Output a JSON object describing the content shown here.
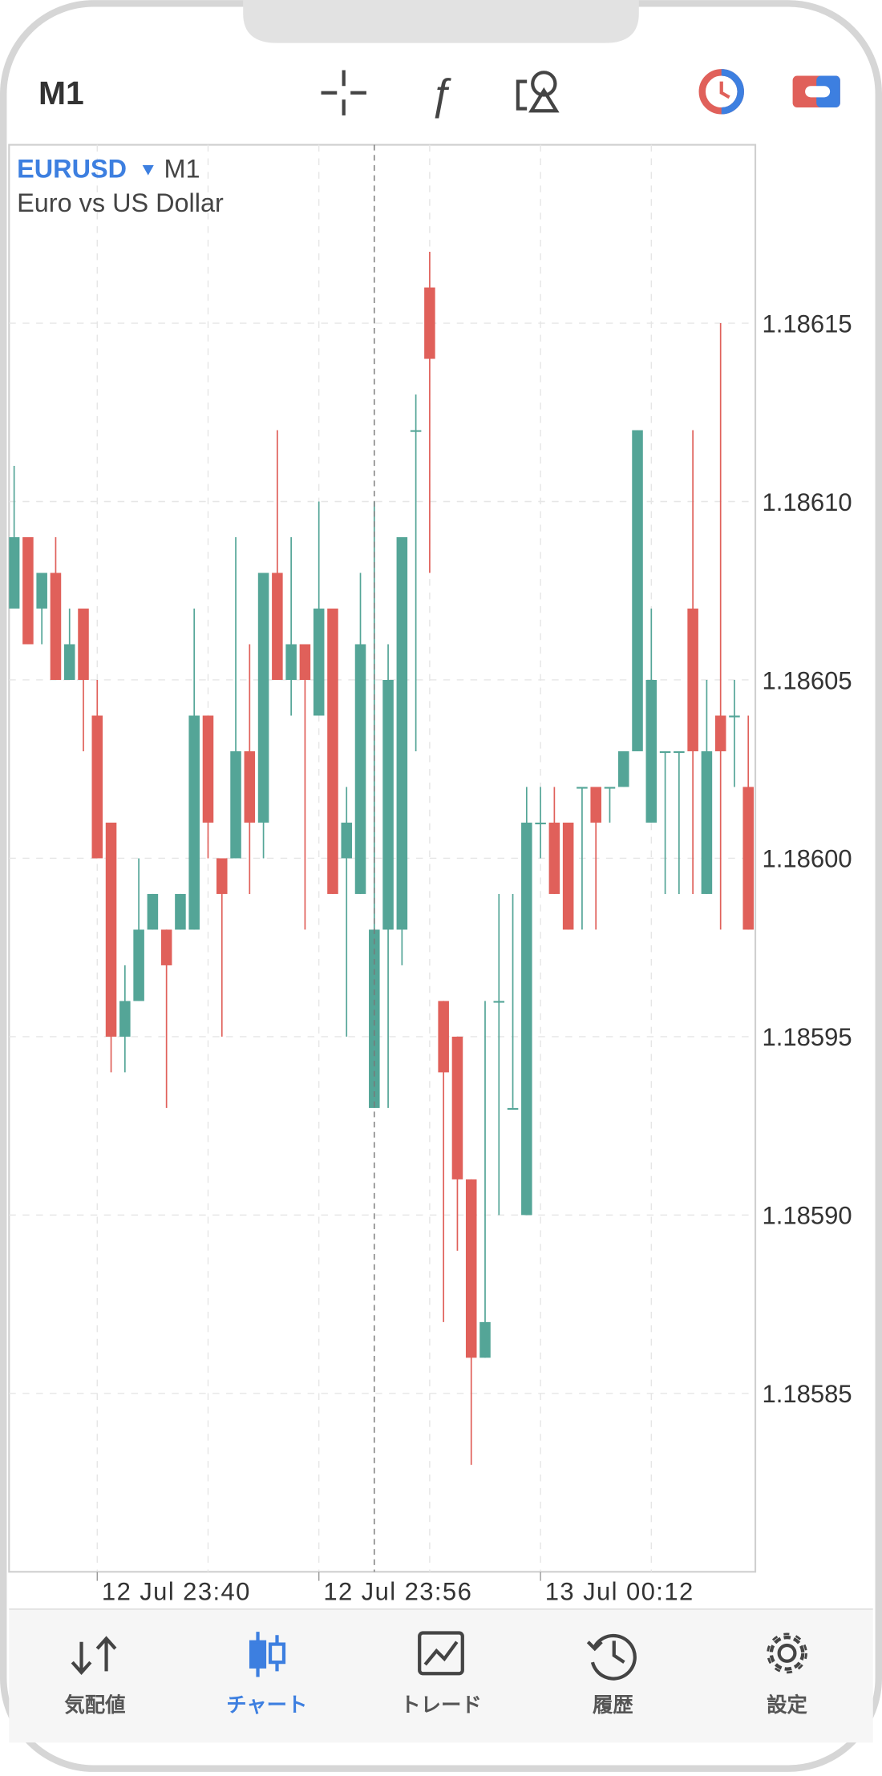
{
  "header": {
    "timeframe": "M1"
  },
  "chart_data": {
    "type": "candlestick",
    "symbol": "EURUSD",
    "timeframe": "M1",
    "description": "Euro vs US Dollar",
    "categories": [
      null,
      null,
      null,
      null,
      null,
      null,
      "12 Jul 23:40",
      null,
      null,
      null,
      null,
      null,
      null,
      null,
      null,
      null,
      null,
      null,
      null,
      null,
      null,
      null,
      "12 Jul 23:56",
      null,
      null,
      null,
      null,
      null,
      null,
      null,
      null,
      null,
      null,
      null,
      null,
      null,
      null,
      null,
      "13 Jul 00:12",
      null,
      null,
      null,
      null,
      null,
      null,
      null,
      null,
      null,
      null,
      null,
      null,
      null,
      null,
      null
    ],
    "open": [
      1.18607,
      1.18609,
      1.18607,
      1.18608,
      1.18605,
      1.18607,
      1.18604,
      1.18601,
      1.18595,
      1.18596,
      1.18598,
      1.18598,
      1.18598,
      1.18598,
      1.18604,
      1.186,
      1.186,
      1.18603,
      1.18601,
      1.18608,
      1.18605,
      1.18606,
      1.18604,
      1.18607,
      1.186,
      1.18599,
      1.18593,
      1.18598,
      1.18598,
      1.18612,
      1.18616,
      1.18596,
      1.18595,
      1.18591,
      1.18586,
      1.18596,
      1.18593,
      1.1859,
      1.18601,
      1.18601,
      1.18601,
      1.18602,
      1.18602,
      1.18602,
      1.18602,
      1.18603,
      1.18601,
      1.18603,
      1.18603,
      1.18607,
      1.18599,
      1.18604,
      1.18604,
      1.18602
    ],
    "high": [
      1.18611,
      1.18609,
      1.18608,
      1.18609,
      1.18607,
      1.18607,
      1.18605,
      1.18601,
      1.18597,
      1.186,
      1.18599,
      1.18598,
      1.18599,
      1.18607,
      1.18604,
      1.186,
      1.18609,
      1.18606,
      1.18608,
      1.18612,
      1.18609,
      1.18606,
      1.1861,
      1.18607,
      1.18602,
      1.18608,
      1.1861,
      1.18606,
      1.18609,
      1.18613,
      1.18617,
      1.18596,
      1.18595,
      1.18591,
      1.18596,
      1.18599,
      1.18599,
      1.18602,
      1.18602,
      1.18602,
      1.18601,
      1.18602,
      1.18602,
      1.18602,
      1.18603,
      1.18612,
      1.18607,
      1.18603,
      1.18603,
      1.18612,
      1.18605,
      1.18615,
      1.18605,
      1.18604
    ],
    "low": [
      1.18607,
      1.18606,
      1.18606,
      1.18605,
      1.18605,
      1.18603,
      1.186,
      1.18594,
      1.18594,
      1.18596,
      1.18598,
      1.18593,
      1.18598,
      1.18598,
      1.186,
      1.18595,
      1.186,
      1.18599,
      1.186,
      1.18605,
      1.18604,
      1.18598,
      1.18604,
      1.18599,
      1.18595,
      1.18599,
      1.18593,
      1.18593,
      1.18597,
      1.18603,
      1.18608,
      1.18587,
      1.18589,
      1.18583,
      1.18586,
      1.1859,
      1.18593,
      1.1859,
      1.186,
      1.18599,
      1.18598,
      1.18598,
      1.18598,
      1.18601,
      1.18602,
      1.18603,
      1.18601,
      1.18599,
      1.18599,
      1.18599,
      1.18599,
      1.18598,
      1.18602,
      1.18598
    ],
    "close": [
      1.18609,
      1.18606,
      1.18608,
      1.18605,
      1.18606,
      1.18605,
      1.186,
      1.18595,
      1.18596,
      1.18598,
      1.18599,
      1.18597,
      1.18599,
      1.18604,
      1.18601,
      1.18599,
      1.18603,
      1.18601,
      1.18608,
      1.18605,
      1.18606,
      1.18605,
      1.18607,
      1.18599,
      1.18601,
      1.18606,
      1.18598,
      1.18605,
      1.18609,
      1.18612,
      1.18614,
      1.18594,
      1.18591,
      1.18586,
      1.18587,
      1.18596,
      1.18593,
      1.18601,
      1.18601,
      1.18599,
      1.18598,
      1.18602,
      1.18601,
      1.18602,
      1.18603,
      1.18612,
      1.18605,
      1.18603,
      1.18603,
      1.18603,
      1.18603,
      1.18603,
      1.18604,
      1.18598
    ],
    "up_color": "#54a597",
    "down_color": "#e0605a",
    "ylim": [
      1.1858,
      1.1862
    ],
    "yticks": [
      1.18585,
      {
        "value": 1.1859,
        "label": "1.18590"
      },
      1.18595,
      {
        "value": 1.186,
        "label": "1.18600"
      },
      1.18605,
      {
        "value": 1.1861,
        "label": "1.18610"
      },
      1.18615
    ],
    "grid": true
  },
  "tabs": [
    {
      "label": "気配値"
    },
    {
      "label": "チャート"
    },
    {
      "label": "トレード"
    },
    {
      "label": "履歴"
    },
    {
      "label": "設定"
    }
  ]
}
